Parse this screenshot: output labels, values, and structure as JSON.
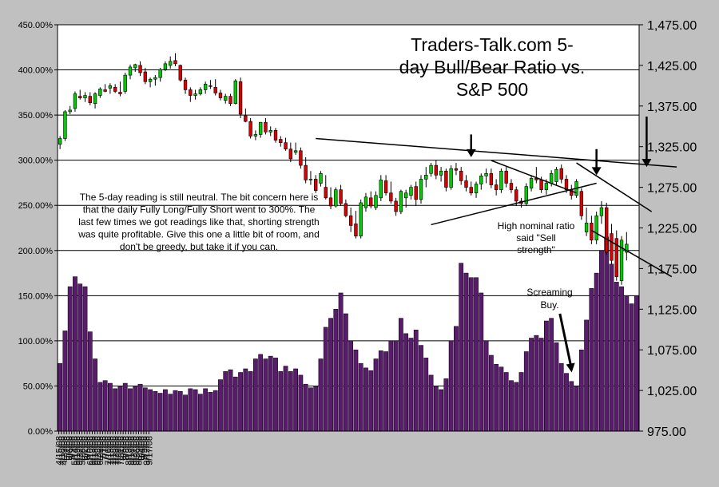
{
  "chart_data": {
    "type": "bar",
    "title": "Traders-Talk.com 5-day Bull/Bear Ratio vs. S&P 500",
    "title_lines": [
      "Traders-Talk.com 5-",
      "day Bull/Bear Ratio vs.",
      "S&P 500"
    ],
    "left_axis": {
      "ticks": [
        "0.00%",
        "50.00%",
        "100.00%",
        "150.00%",
        "200.00%",
        "250.00%",
        "300.00%",
        "350.00%",
        "400.00%",
        "450.00%"
      ],
      "ylim": [
        0,
        450
      ]
    },
    "right_axis": {
      "ticks": [
        "975.00",
        "1,025.00",
        "1,075.00",
        "1,125.00",
        "1,175.00",
        "1,225.00",
        "1,275.00",
        "1,325.00",
        "1,375.00",
        "1,425.00",
        "1,475.00"
      ],
      "ylim": [
        975,
        1475
      ]
    },
    "x_tick_labels": [
      "4/15/08",
      "4/18/08",
      "4/23/08",
      "5/1/08",
      "5/6/08",
      "5/9/08",
      "5/14/08",
      "5/19/08",
      "5/22/08",
      "5/28/08",
      "6/2/08",
      "6/5/08",
      "6/10/08",
      "6/13/08",
      "6/18/08",
      "6/23/08",
      "6/26/08",
      "7/1/08",
      "7/7/08",
      "7/10/08",
      "7/15/08",
      "7/18/08",
      "7/23/08",
      "7/28/08",
      "7/31/08",
      "8/5/08",
      "8/8/08",
      "8/13/08",
      "8/18/08",
      "8/21/08",
      "8/26/08",
      "8/29/08",
      "9/4/08",
      "9/9/08",
      "9/12/08",
      "9/17/08"
    ],
    "series": [
      {
        "name": "5-day Bull/Bear Ratio",
        "unit": "%",
        "color": "#5a1a6e",
        "values": [
          75,
          111,
          160,
          171,
          163,
          160,
          110,
          80,
          54,
          56,
          53,
          47,
          50,
          53,
          47,
          50,
          52,
          48,
          46,
          44,
          42,
          46,
          41,
          45,
          44,
          40,
          47,
          46,
          41,
          47,
          43,
          45,
          57,
          66,
          68,
          60,
          65,
          69,
          66,
          80,
          85,
          80,
          83,
          81,
          66,
          72,
          66,
          69,
          62,
          52,
          48,
          50,
          80,
          115,
          125,
          135,
          153,
          130,
          100,
          90,
          75,
          70,
          67,
          80,
          89,
          88,
          100,
          100,
          125,
          108,
          103,
          112,
          95,
          81,
          62,
          50,
          46,
          58,
          100,
          116,
          186,
          175,
          170,
          170,
          153,
          100,
          84,
          74,
          71,
          65,
          56,
          54,
          65,
          88,
          103,
          106,
          103,
          122,
          125,
          98,
          75,
          64,
          55,
          50,
          90,
          123,
          158,
          175,
          200,
          215,
          185,
          165,
          160,
          150,
          141,
          150
        ]
      },
      {
        "name": "S&P 500",
        "color_up": "#00cc00",
        "color_down": "#dd0000",
        "ohlc": [
          [
            1328,
            1338,
            1322,
            1335
          ],
          [
            1335,
            1370,
            1332,
            1368
          ],
          [
            1368,
            1375,
            1365,
            1370
          ],
          [
            1372,
            1393,
            1368,
            1390
          ],
          [
            1387,
            1395,
            1383,
            1385
          ],
          [
            1385,
            1392,
            1380,
            1388
          ],
          [
            1387,
            1392,
            1376,
            1379
          ],
          [
            1378,
            1392,
            1372,
            1390
          ],
          [
            1388,
            1398,
            1385,
            1396
          ],
          [
            1395,
            1402,
            1392,
            1393
          ],
          [
            1397,
            1403,
            1390,
            1400
          ],
          [
            1398,
            1402,
            1391,
            1393
          ],
          [
            1392,
            1405,
            1387,
            1390
          ],
          [
            1393,
            1416,
            1390,
            1413
          ],
          [
            1413,
            1426,
            1408,
            1423
          ],
          [
            1422,
            1427,
            1417,
            1426
          ],
          [
            1425,
            1430,
            1412,
            1416
          ],
          [
            1417,
            1422,
            1402,
            1405
          ],
          [
            1405,
            1410,
            1398,
            1408
          ],
          [
            1408,
            1413,
            1400,
            1410
          ],
          [
            1410,
            1422,
            1405,
            1420
          ],
          [
            1420,
            1430,
            1418,
            1427
          ],
          [
            1425,
            1436,
            1421,
            1430
          ],
          [
            1431,
            1440,
            1424,
            1427
          ],
          [
            1425,
            1426,
            1405,
            1407
          ],
          [
            1407,
            1410,
            1390,
            1395
          ],
          [
            1395,
            1398,
            1380,
            1388
          ],
          [
            1388,
            1395,
            1383,
            1390
          ],
          [
            1390,
            1398,
            1388,
            1395
          ],
          [
            1395,
            1405,
            1390,
            1402
          ],
          [
            1400,
            1407,
            1396,
            1399
          ],
          [
            1398,
            1408,
            1388,
            1391
          ],
          [
            1391,
            1395,
            1382,
            1385
          ],
          [
            1382,
            1390,
            1378,
            1387
          ],
          [
            1387,
            1390,
            1375,
            1378
          ],
          [
            1378,
            1408,
            1377,
            1406
          ],
          [
            1405,
            1410,
            1360,
            1365
          ],
          [
            1363,
            1372,
            1355,
            1356
          ],
          [
            1356,
            1360,
            1335,
            1338
          ],
          [
            1338,
            1345,
            1333,
            1340
          ],
          [
            1340,
            1352,
            1336,
            1355
          ],
          [
            1355,
            1360,
            1340,
            1343
          ],
          [
            1343,
            1350,
            1338,
            1345
          ],
          [
            1345,
            1348,
            1330,
            1333
          ],
          [
            1334,
            1338,
            1325,
            1330
          ],
          [
            1330,
            1336,
            1320,
            1322
          ],
          [
            1322,
            1330,
            1306,
            1310
          ],
          [
            1318,
            1330,
            1315,
            1320
          ],
          [
            1320,
            1324,
            1298,
            1302
          ],
          [
            1302,
            1312,
            1280,
            1284
          ],
          [
            1284,
            1295,
            1278,
            1285
          ],
          [
            1285,
            1290,
            1268,
            1271
          ],
          [
            1280,
            1295,
            1276,
            1292
          ],
          [
            1275,
            1290,
            1260,
            1262
          ],
          [
            1262,
            1275,
            1248,
            1252
          ],
          [
            1252,
            1275,
            1250,
            1272
          ],
          [
            1272,
            1278,
            1252,
            1255
          ],
          [
            1255,
            1260,
            1238,
            1240
          ],
          [
            1240,
            1250,
            1220,
            1228
          ],
          [
            1230,
            1246,
            1212,
            1215
          ],
          [
            1215,
            1260,
            1212,
            1256
          ],
          [
            1250,
            1268,
            1245,
            1263
          ],
          [
            1262,
            1270,
            1249,
            1252
          ],
          [
            1250,
            1270,
            1247,
            1265
          ],
          [
            1262,
            1290,
            1258,
            1284
          ],
          [
            1283,
            1290,
            1265,
            1268
          ],
          [
            1268,
            1282,
            1255,
            1258
          ],
          [
            1258,
            1262,
            1240,
            1245
          ],
          [
            1245,
            1272,
            1242,
            1270
          ],
          [
            1262,
            1272,
            1250,
            1268
          ],
          [
            1265,
            1278,
            1260,
            1275
          ],
          [
            1276,
            1282,
            1252,
            1260
          ],
          [
            1260,
            1290,
            1255,
            1285
          ],
          [
            1285,
            1300,
            1275,
            1290
          ],
          [
            1292,
            1305,
            1288,
            1302
          ],
          [
            1302,
            1308,
            1285,
            1290
          ],
          [
            1290,
            1300,
            1282,
            1295
          ],
          [
            1295,
            1298,
            1270,
            1275
          ],
          [
            1275,
            1302,
            1272,
            1298
          ],
          [
            1298,
            1305,
            1290,
            1296
          ],
          [
            1295,
            1300,
            1278,
            1283
          ],
          [
            1283,
            1290,
            1270,
            1275
          ],
          [
            1275,
            1282,
            1265,
            1268
          ],
          [
            1268,
            1282,
            1262,
            1279
          ],
          [
            1279,
            1292,
            1272,
            1289
          ],
          [
            1289,
            1298,
            1280,
            1292
          ],
          [
            1292,
            1298,
            1274,
            1278
          ],
          [
            1278,
            1285,
            1265,
            1272
          ],
          [
            1272,
            1298,
            1268,
            1295
          ],
          [
            1295,
            1300,
            1275,
            1280
          ],
          [
            1280,
            1285,
            1268,
            1272
          ],
          [
            1272,
            1276,
            1252,
            1258
          ],
          [
            1258,
            1262,
            1250,
            1255
          ],
          [
            1255,
            1280,
            1252,
            1276
          ],
          [
            1274,
            1290,
            1270,
            1286
          ],
          [
            1286,
            1300,
            1280,
            1284
          ],
          [
            1284,
            1288,
            1268,
            1272
          ],
          [
            1272,
            1285,
            1266,
            1280
          ],
          [
            1280,
            1296,
            1276,
            1292
          ],
          [
            1282,
            1300,
            1278,
            1297
          ],
          [
            1298,
            1303,
            1280,
            1285
          ],
          [
            1285,
            1290,
            1268,
            1272
          ],
          [
            1272,
            1278,
            1260,
            1265
          ],
          [
            1265,
            1285,
            1262,
            1282
          ],
          [
            1270,
            1274,
            1235,
            1240
          ],
          [
            1220,
            1250,
            1215,
            1231
          ],
          [
            1231,
            1240,
            1205,
            1210
          ],
          [
            1210,
            1245,
            1205,
            1240
          ],
          [
            1240,
            1258,
            1230,
            1250
          ],
          [
            1250,
            1256,
            1192,
            1195
          ],
          [
            1218,
            1230,
            1180,
            1185
          ],
          [
            1212,
            1222,
            1160,
            1165
          ],
          [
            1160,
            1215,
            1155,
            1210
          ],
          [
            1195,
            1220,
            1185,
            1205
          ]
        ]
      }
    ],
    "annotations": {
      "commentary_lines": [
        "The 5-day reading is still neutral. The bit concern here is",
        "that the daily Fully Long/Fully Short went to 300%. The",
        "last few times we got readings like that, shorting strength",
        "was quite profitable. Give this one a little bit of room, and",
        "don't be greedy, but take it if you can."
      ],
      "high_ratio_lines": [
        "High nominal ratio",
        "said \"Sell",
        "strength\""
      ],
      "screaming_lines": [
        "Screaming",
        "Buy."
      ]
    },
    "grid": true,
    "legend": "none"
  }
}
